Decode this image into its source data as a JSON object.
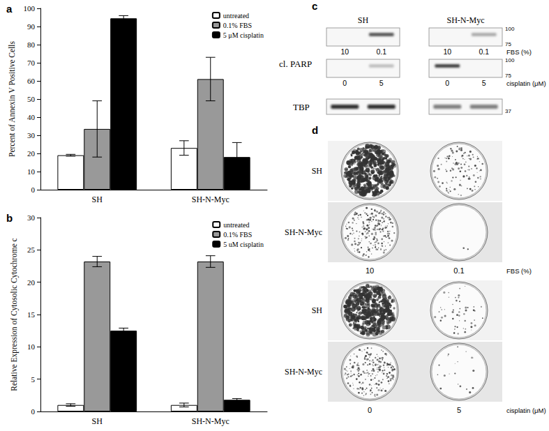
{
  "chart_data": [
    {
      "panel": "a",
      "type": "bar",
      "y_label": "Percent of Annexin V Positive Cells",
      "categories": [
        "SH",
        "SH-N-Myc"
      ],
      "series": [
        {
          "name": "untreated",
          "color": "#ffffff",
          "values": [
            19,
            23
          ],
          "error": [
            0.5,
            4
          ]
        },
        {
          "name": "0.1% FBS",
          "color": "#999999",
          "values": [
            33.5,
            61
          ],
          "error": [
            15.5,
            12
          ]
        },
        {
          "name": "5 μM cisplatin",
          "color": "#000000",
          "values": [
            94.5,
            18
          ],
          "error": [
            1.5,
            8
          ]
        }
      ],
      "ylim": [
        0,
        100
      ],
      "yticks": [
        0,
        10,
        20,
        30,
        40,
        50,
        60,
        70,
        80,
        90,
        100
      ],
      "grid": false,
      "legend": "upper right"
    },
    {
      "panel": "b",
      "type": "bar",
      "y_label": "Relative Expression of Cytosolic Cytochrome c",
      "categories": [
        "SH",
        "SH-N-Myc"
      ],
      "series": [
        {
          "name": "untreated",
          "color": "#ffffff",
          "values": [
            1,
            1
          ],
          "error": [
            0.2,
            0.3
          ]
        },
        {
          "name": "0.1% FBS",
          "color": "#999999",
          "values": [
            23.2,
            23.2
          ],
          "error": [
            0.8,
            0.9
          ]
        },
        {
          "name": "5 uM cisplatin",
          "color": "#000000",
          "values": [
            12.5,
            1.8
          ],
          "error": [
            0.4,
            0.2
          ]
        }
      ],
      "ylim": [
        0,
        30
      ],
      "yticks": [
        0,
        5,
        10,
        15,
        20,
        25,
        30
      ],
      "grid": false,
      "legend": "upper right"
    }
  ],
  "blot": {
    "panel": "c",
    "groups": [
      "SH",
      "SH-N-Myc"
    ],
    "target": "cl. PARP",
    "loading": "TBP",
    "rows": [
      {
        "levels": [
          10,
          0.1
        ],
        "unit": "FBS (%)"
      },
      {
        "levels": [
          0,
          5
        ],
        "unit": "cisplatin (μM)"
      }
    ],
    "markers": [
      100,
      75,
      37
    ]
  },
  "plates": {
    "panel": "d",
    "rows": [
      "SH",
      "SH-N-Myc"
    ],
    "treatments": [
      {
        "levels": [
          10,
          0.1
        ],
        "unit": "FBS (%)"
      },
      {
        "levels": [
          0,
          5
        ],
        "unit": "cisplatin (μM)"
      }
    ]
  }
}
